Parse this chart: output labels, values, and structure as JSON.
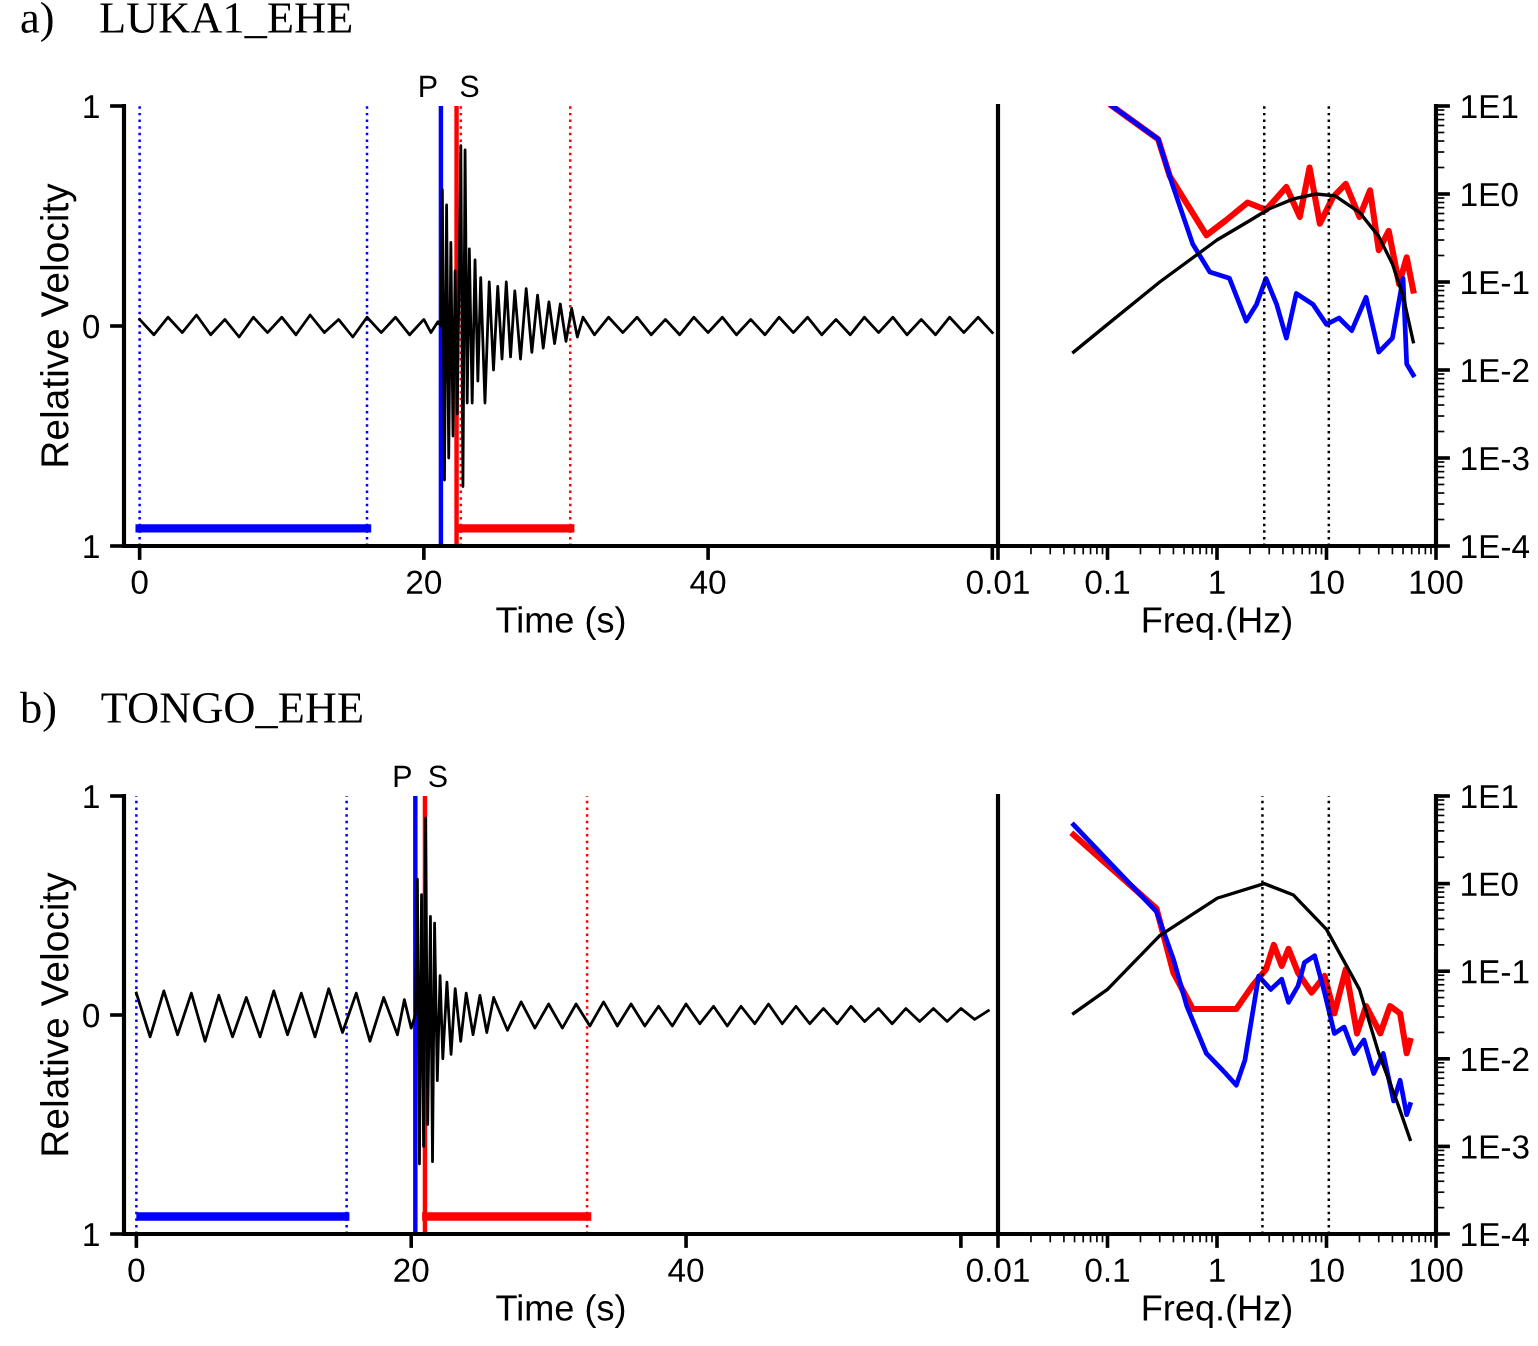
{
  "chart_data": [
    {
      "type": "line",
      "title": "a)    LUKA1_EHE",
      "xlabel": "Time (s)",
      "ylabel": "Relative Velocity",
      "xlim": [
        -1.1,
        60.4
      ],
      "ylim": [
        -1,
        1
      ],
      "xticks": [
        0,
        20,
        40,
        {
          "value": 60,
          "label": null
        }
      ],
      "yticks": [
        {
          "value": -1,
          "label": "1"
        },
        0,
        1
      ],
      "series": [
        {
          "color": "#000000",
          "x": [
            0,
            1,
            2,
            3,
            4,
            5,
            6,
            7,
            8,
            9,
            10,
            11,
            12,
            13,
            14,
            15,
            16,
            17,
            18,
            19,
            20,
            20.5,
            21.0,
            21.2,
            21.3,
            21.45,
            21.6,
            21.75,
            21.9,
            22.05,
            22.2,
            22.35,
            22.6,
            22.75,
            22.9,
            23.05,
            23.2,
            23.4,
            23.6,
            23.8,
            24.0,
            24.3,
            24.6,
            24.9,
            25.2,
            25.5,
            25.8,
            26.1,
            26.4,
            26.8,
            27.2,
            27.6,
            28.0,
            28.4,
            28.8,
            29.2,
            29.6,
            30.0,
            30.4,
            30.8,
            31.2,
            32,
            33,
            34,
            35,
            36,
            37,
            38,
            39,
            40,
            41,
            42,
            43,
            44,
            45,
            46,
            47,
            48,
            49,
            50,
            51,
            52,
            53,
            54,
            55,
            56,
            57,
            58,
            59,
            60
          ],
          "values": [
            0.03,
            -0.04,
            0.04,
            -0.03,
            0.05,
            -0.04,
            0.03,
            -0.05,
            0.04,
            -0.03,
            0.04,
            -0.04,
            0.05,
            -0.03,
            0.03,
            -0.05,
            0.04,
            -0.03,
            0.04,
            -0.04,
            0.03,
            -0.03,
            0.02,
            0.0,
            0.62,
            -0.7,
            0.55,
            -0.6,
            0.38,
            -0.5,
            0.25,
            -0.4,
            0.82,
            -0.73,
            0.8,
            -0.35,
            0.35,
            -0.35,
            0.3,
            -0.25,
            0.22,
            -0.35,
            0.2,
            -0.2,
            0.18,
            -0.15,
            0.2,
            -0.14,
            0.16,
            -0.15,
            0.17,
            -0.12,
            0.14,
            -0.1,
            0.11,
            -0.08,
            0.1,
            -0.07,
            0.08,
            -0.05,
            0.04,
            -0.04,
            0.04,
            -0.03,
            0.04,
            -0.04,
            0.03,
            -0.04,
            0.04,
            -0.03,
            0.04,
            -0.04,
            0.03,
            -0.04,
            0.04,
            -0.03,
            0.04,
            -0.04,
            0.03,
            -0.04,
            0.04,
            -0.03,
            0.04,
            -0.04,
            0.03,
            -0.04,
            0.04,
            -0.03,
            0.04,
            -0.03
          ]
        },
        {
          "color": "#0000ff",
          "x": [
            0,
            16
          ],
          "values": [
            -0.92,
            -0.92
          ]
        },
        {
          "color": "#ff0000",
          "x": [
            22.6,
            30.3
          ],
          "values": [
            -0.92,
            -0.92
          ]
        }
      ],
      "ref_lines": [
        {
          "axis": "x",
          "value": 0,
          "color": "#0000ff",
          "line_style": "dotted"
        },
        {
          "axis": "x",
          "value": 16,
          "color": "#0000ff",
          "line_style": "dotted"
        },
        {
          "axis": "x",
          "value": 21.2,
          "color": "#0000ff",
          "line_style": "solid",
          "label": "P"
        },
        {
          "axis": "x",
          "value": 22.3,
          "color": "#ff0000",
          "line_style": "solid",
          "label": "S"
        },
        {
          "axis": "x",
          "value": 22.6,
          "color": "#ff0000",
          "line_style": "dotted"
        },
        {
          "axis": "x",
          "value": 30.3,
          "color": "#ff0000",
          "line_style": "dotted"
        }
      ]
    },
    {
      "type": "line",
      "xlabel": "Freq.(Hz)",
      "log": "xy",
      "xlim": [
        0.01,
        100
      ],
      "ylim": [
        0.0001,
        10
      ],
      "xticks": [
        0.01,
        0.1,
        1,
        10,
        100
      ],
      "yticks": [
        {
          "value": 0.0001,
          "label": "1E-4"
        },
        {
          "value": 0.001,
          "label": "1E-3"
        },
        {
          "value": 0.01,
          "label": "1E-2"
        },
        {
          "value": 0.1,
          "label": "1E-1"
        },
        {
          "value": 1,
          "label": "1E0"
        },
        {
          "value": 10,
          "label": "1E1"
        }
      ],
      "series": [
        {
          "color": "#ff0000",
          "x": [
            0.11,
            0.29,
            0.37,
            0.8,
            1.2,
            1.9,
            2.8,
            4.3,
            5.7,
            7.0,
            8.7,
            11.5,
            15,
            20,
            25,
            30,
            37,
            46,
            54,
            62
          ],
          "values": [
            10,
            4.2,
            1.6,
            0.34,
            0.5,
            0.8,
            0.66,
            1.2,
            0.55,
            2.0,
            0.46,
            0.93,
            1.3,
            0.55,
            1.1,
            0.23,
            0.38,
            0.095,
            0.19,
            0.08
          ]
        },
        {
          "color": "#0000ff",
          "x": [
            0.11,
            0.29,
            0.39,
            0.6,
            0.86,
            1.3,
            1.85,
            2.3,
            2.8,
            3.5,
            4.3,
            5.3,
            7.5,
            10,
            13,
            17,
            23,
            30,
            40,
            50,
            54,
            62
          ],
          "values": [
            10,
            4.2,
            1.3,
            0.27,
            0.13,
            0.11,
            0.036,
            0.056,
            0.11,
            0.056,
            0.023,
            0.074,
            0.056,
            0.033,
            0.039,
            0.028,
            0.067,
            0.016,
            0.023,
            0.11,
            0.0117,
            0.0088
          ]
        },
        {
          "color": "#000000",
          "x": [
            0.049,
            0.1,
            0.3,
            1,
            2,
            3,
            5,
            8,
            12,
            20,
            30,
            40,
            50,
            62
          ],
          "values": [
            0.016,
            0.033,
            0.1,
            0.3,
            0.5,
            0.68,
            0.88,
            1.0,
            0.95,
            0.62,
            0.33,
            0.16,
            0.07,
            0.021
          ]
        }
      ],
      "ref_lines": [
        {
          "axis": "x",
          "value": 2.7,
          "color": "#000000",
          "line_style": "dotted"
        },
        {
          "axis": "x",
          "value": 10.5,
          "color": "#000000",
          "line_style": "dotted"
        }
      ]
    },
    {
      "type": "line",
      "title": "b)    TONGO_EHE",
      "xlabel": "Time (s)",
      "ylabel": "Relative Velocity",
      "xlim": [
        -0.9,
        62.7
      ],
      "ylim": [
        -1,
        1
      ],
      "xticks": [
        0,
        20,
        40,
        {
          "value": 60,
          "label": null
        }
      ],
      "yticks": [
        {
          "value": -1,
          "label": "1"
        },
        0,
        1
      ],
      "series": [
        {
          "color": "#000000",
          "x": [
            0,
            1,
            2,
            3,
            4,
            5,
            6,
            7,
            8,
            9,
            10,
            11,
            12,
            13,
            14,
            15,
            16,
            17,
            18,
            19,
            19.5,
            20.0,
            20.3,
            20.45,
            20.6,
            20.75,
            20.9,
            21.05,
            21.2,
            21.4,
            21.55,
            21.7,
            21.9,
            22.1,
            22.3,
            22.6,
            22.9,
            23.2,
            23.6,
            24.0,
            24.5,
            25.0,
            25.5,
            26.0,
            27.0,
            28.0,
            29,
            30,
            31,
            32,
            33,
            34,
            35,
            36,
            37,
            38,
            39,
            40,
            41,
            42,
            43,
            44,
            45,
            46,
            47,
            48,
            49,
            50,
            51,
            52,
            53,
            54,
            55,
            56,
            57,
            58,
            59,
            60,
            61,
            62
          ],
          "values": [
            0.1,
            -0.1,
            0.11,
            -0.09,
            0.1,
            -0.12,
            0.09,
            -0.1,
            0.08,
            -0.1,
            0.11,
            -0.09,
            0.1,
            -0.1,
            0.12,
            -0.08,
            0.1,
            -0.12,
            0.08,
            -0.09,
            0.07,
            -0.06,
            0.0,
            0.62,
            -0.68,
            0.55,
            -0.6,
            0.9,
            -0.5,
            0.45,
            -0.67,
            0.42,
            -0.3,
            0.18,
            -0.2,
            0.15,
            -0.18,
            0.12,
            -0.12,
            0.1,
            -0.09,
            0.09,
            -0.08,
            0.08,
            -0.07,
            0.06,
            -0.06,
            0.05,
            -0.06,
            0.05,
            -0.05,
            0.06,
            -0.05,
            0.05,
            -0.05,
            0.04,
            -0.05,
            0.05,
            -0.04,
            0.04,
            -0.05,
            0.04,
            -0.04,
            0.05,
            -0.04,
            0.04,
            -0.04,
            0.03,
            -0.04,
            0.04,
            -0.03,
            0.03,
            -0.04,
            0.03,
            -0.03,
            0.03,
            -0.03,
            0.03,
            -0.02,
            0.02
          ]
        },
        {
          "color": "#0000ff",
          "x": [
            0.3,
            15.2
          ],
          "values": [
            -0.92,
            -0.92
          ]
        },
        {
          "color": "#ff0000",
          "x": [
            21.1,
            32.8
          ],
          "values": [
            -0.92,
            -0.92
          ]
        }
      ],
      "ref_lines": [
        {
          "axis": "x",
          "value": 0,
          "color": "#0000ff",
          "line_style": "dotted"
        },
        {
          "axis": "x",
          "value": 15.3,
          "color": "#0000ff",
          "line_style": "dotted"
        },
        {
          "axis": "x",
          "value": 20.3,
          "color": "#0000ff",
          "line_style": "solid",
          "label": "P"
        },
        {
          "axis": "x",
          "value": 21.0,
          "color": "#ff0000",
          "line_style": "solid",
          "label": "S"
        },
        {
          "axis": "x",
          "value": 32.8,
          "color": "#ff0000",
          "line_style": "dotted"
        }
      ]
    },
    {
      "type": "line",
      "xlabel": "Freq.(Hz)",
      "log": "xy",
      "xlim": [
        0.01,
        100
      ],
      "ylim": [
        0.0001,
        10
      ],
      "xticks": [
        0.01,
        0.1,
        1,
        10,
        100
      ],
      "yticks": [
        {
          "value": 0.0001,
          "label": "1E-4"
        },
        {
          "value": 0.001,
          "label": "1E-3"
        },
        {
          "value": 0.01,
          "label": "1E-2"
        },
        {
          "value": 0.1,
          "label": "1E-1"
        },
        {
          "value": 1,
          "label": "1E0"
        },
        {
          "value": 10,
          "label": "1E1"
        }
      ],
      "series": [
        {
          "color": "#ff0000",
          "x": [
            0.049,
            0.28,
            0.4,
            0.6,
            0.9,
            1.5,
            2.1,
            2.8,
            3.3,
            3.9,
            4.5,
            5.5,
            7.3,
            9.6,
            11.8,
            15,
            19,
            23,
            31,
            38,
            47,
            54,
            58
          ],
          "values": [
            3.6,
            0.52,
            0.096,
            0.037,
            0.037,
            0.037,
            0.068,
            0.105,
            0.2,
            0.115,
            0.18,
            0.096,
            0.057,
            0.088,
            0.033,
            0.105,
            0.0195,
            0.04,
            0.0195,
            0.04,
            0.033,
            0.0116,
            0.016
          ]
        },
        {
          "color": "#0000ff",
          "x": [
            0.049,
            0.28,
            0.4,
            0.53,
            0.8,
            1.2,
            1.5,
            1.8,
            2.4,
            3.1,
            3.9,
            4.5,
            5.5,
            6.3,
            7.8,
            9.6,
            11.8,
            14.5,
            17.9,
            22,
            27,
            33,
            41,
            47,
            54,
            58
          ],
          "values": [
            4.7,
            0.48,
            0.137,
            0.04,
            0.0115,
            0.0068,
            0.005,
            0.0097,
            0.088,
            0.062,
            0.081,
            0.044,
            0.068,
            0.126,
            0.15,
            0.057,
            0.0195,
            0.023,
            0.0115,
            0.0164,
            0.0068,
            0.0115,
            0.0033,
            0.0057,
            0.0023,
            0.003
          ]
        },
        {
          "color": "#000000",
          "x": [
            0.049,
            0.1,
            0.3,
            1,
            2.7,
            5,
            10,
            20,
            30,
            45,
            58
          ],
          "values": [
            0.033,
            0.062,
            0.255,
            0.68,
            1.0,
            0.74,
            0.3,
            0.062,
            0.0116,
            0.003,
            0.0012
          ]
        }
      ],
      "ref_lines": [
        {
          "axis": "x",
          "value": 2.6,
          "color": "#000000",
          "line_style": "dotted"
        },
        {
          "axis": "x",
          "value": 10.5,
          "color": "#000000",
          "line_style": "dotted"
        }
      ]
    }
  ]
}
